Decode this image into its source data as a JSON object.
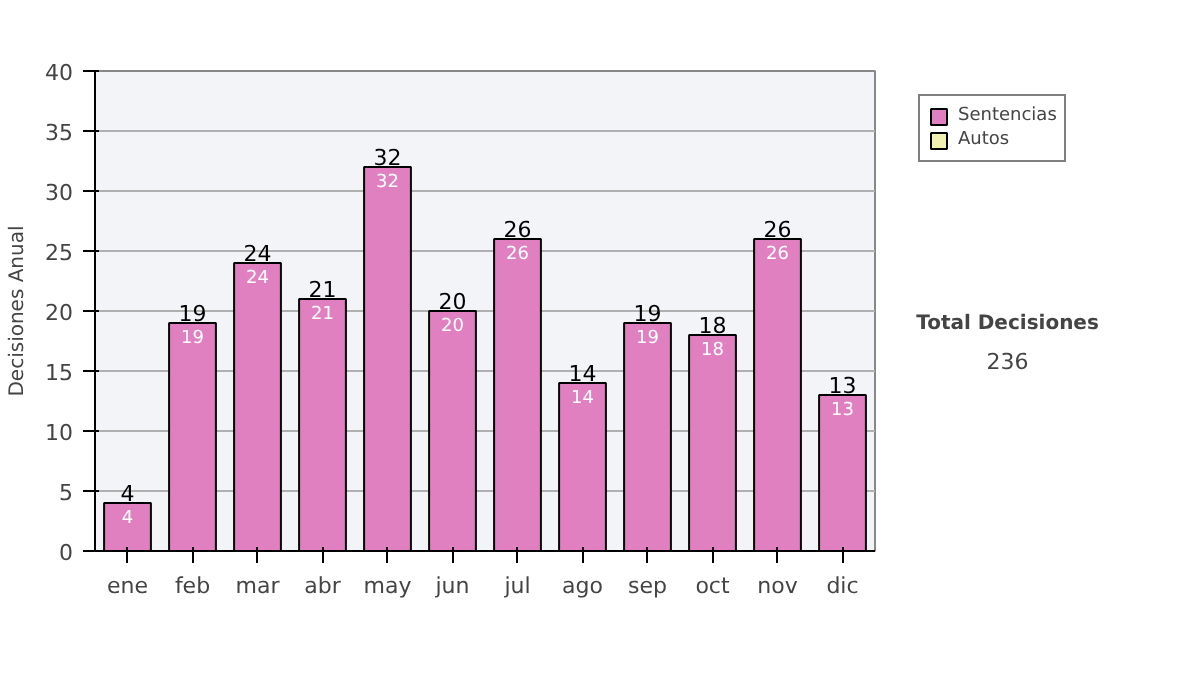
{
  "chart_data": {
    "type": "bar",
    "ylabel": "Decisiones Anual",
    "categories": [
      "ene",
      "feb",
      "mar",
      "abr",
      "may",
      "jun",
      "jul",
      "ago",
      "sep",
      "oct",
      "nov",
      "dic"
    ],
    "series": [
      {
        "name": "Sentencias",
        "color": "#e080c0",
        "values": [
          4,
          19,
          24,
          21,
          32,
          20,
          26,
          14,
          19,
          18,
          26,
          13
        ]
      },
      {
        "name": "Autos",
        "color": "#f0f0b0",
        "values": [
          null,
          null,
          null,
          null,
          null,
          null,
          null,
          null,
          null,
          null,
          null,
          null
        ]
      }
    ],
    "stacked": true,
    "data_labels": true,
    "totals": [
      "4",
      "19",
      "24",
      "21",
      "32",
      "20",
      "26",
      "14",
      "19",
      "18",
      "26",
      "13"
    ],
    "ylim": [
      0,
      40
    ],
    "yticks": [
      0,
      5,
      10,
      15,
      20,
      25,
      30,
      35,
      40
    ],
    "grid": "y",
    "legend": "right",
    "annotations": [
      "Total Decisiones",
      "236"
    ]
  }
}
